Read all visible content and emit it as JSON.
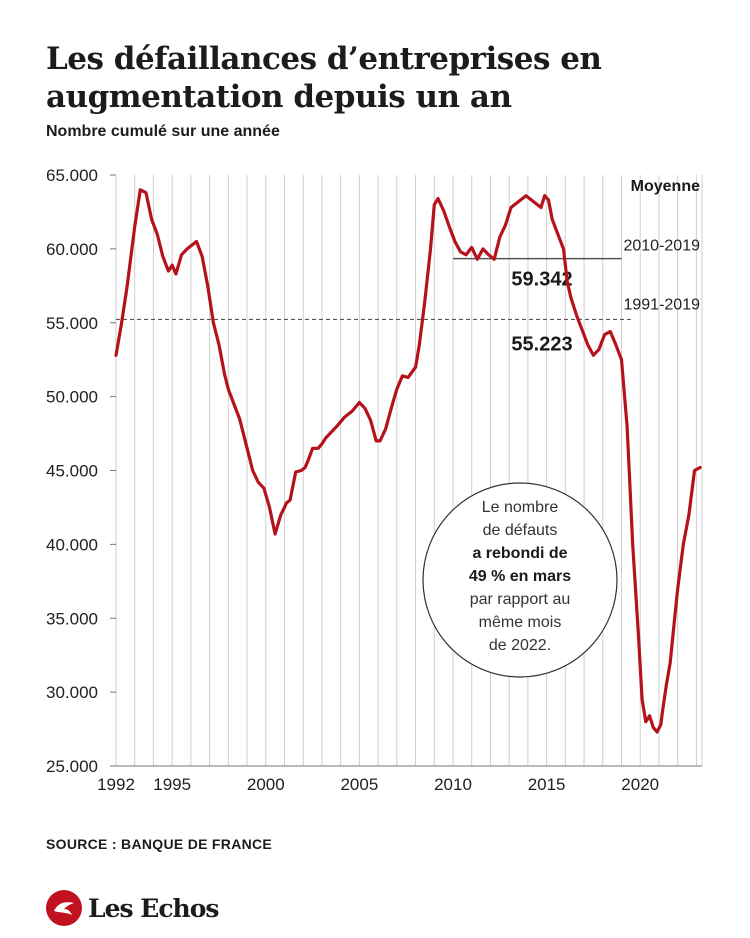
{
  "header": {
    "title": "Les défaillances d’entreprises en augmentation depuis un an",
    "subtitle": "Nombre cumulé sur une année"
  },
  "source": "SOURCE : BANQUE DE FRANCE",
  "brand": {
    "name": "Les Echos"
  },
  "colors": {
    "line": "#b5121b",
    "grid": "#cfcfcf",
    "reference": "#555555"
  },
  "chart_data": {
    "type": "line",
    "title": "Les défaillances d’entreprises en augmentation depuis un an",
    "subtitle": "Nombre cumulé sur une année",
    "xlabel": "",
    "ylabel": "",
    "xlim": [
      1992,
      2023.3
    ],
    "ylim": [
      25000,
      65000
    ],
    "x_ticks": [
      1992,
      1995,
      2000,
      2005,
      2010,
      2015,
      2020
    ],
    "x_tick_labels": [
      "1992",
      "1995",
      "2000",
      "2005",
      "2010",
      "2015",
      "2020"
    ],
    "y_ticks": [
      25000,
      30000,
      35000,
      40000,
      45000,
      50000,
      55000,
      60000,
      65000
    ],
    "y_tick_labels": [
      "25.000",
      "30.000",
      "35.000",
      "40.000",
      "45.000",
      "50.000",
      "55.000",
      "60.000",
      "65.000"
    ],
    "grid": {
      "vertical": true,
      "horizontal": false
    },
    "legend": "none",
    "series": [
      {
        "x": [
          1992.0,
          1992.3,
          1992.6,
          1993.0,
          1993.3,
          1993.6,
          1993.9,
          1994.2,
          1994.5,
          1994.8,
          1995.0,
          1995.2,
          1995.5,
          1995.8,
          1996.0,
          1996.3,
          1996.6,
          1996.9,
          1997.2,
          1997.5,
          1997.8,
          1998.0,
          1998.3,
          1998.6,
          1999.0,
          1999.3,
          1999.6,
          1999.9,
          2000.2,
          2000.5,
          2000.8,
          2001.0,
          2001.1,
          2001.3,
          2001.6,
          2001.9,
          2002.1,
          2002.3,
          2002.5,
          2002.8,
          2003.0,
          2003.2,
          2003.5,
          2003.8,
          2004.2,
          2004.6,
          2005.0,
          2005.3,
          2005.6,
          2005.9,
          2006.1,
          2006.4,
          2006.7,
          2007.0,
          2007.3,
          2007.6,
          2008.0,
          2008.2,
          2008.5,
          2008.8,
          2009.0,
          2009.2,
          2009.5,
          2009.8,
          2010.1,
          2010.4,
          2010.7,
          2011.0,
          2011.3,
          2011.6,
          2011.9,
          2012.2,
          2012.5,
          2012.8,
          2013.1,
          2013.5,
          2013.9,
          2014.3,
          2014.7,
          2014.9,
          2015.1,
          2015.3,
          2015.6,
          2015.9,
          2016.1,
          2016.3,
          2016.6,
          2016.9,
          2017.2,
          2017.5,
          2017.8,
          2018.1,
          2018.4,
          2018.7,
          2019.0,
          2019.3,
          2019.6,
          2019.9,
          2020.1,
          2020.3,
          2020.5,
          2020.7,
          2020.9,
          2021.1,
          2021.2,
          2021.4,
          2021.6,
          2021.8,
          2022.0,
          2022.3,
          2022.6,
          2022.9,
          2023.2
        ],
        "y": [
          52800,
          55000,
          57500,
          61500,
          64000,
          63800,
          62000,
          61000,
          59500,
          58500,
          58900,
          58300,
          59600,
          60000,
          60200,
          60500,
          59500,
          57500,
          55000,
          53500,
          51500,
          50500,
          49500,
          48500,
          46500,
          45000,
          44200,
          43800,
          42500,
          40700,
          42000,
          42500,
          42800,
          43000,
          44900,
          45000,
          45200,
          45800,
          46500,
          46500,
          46800,
          47200,
          47600,
          48000,
          48600,
          49000,
          49600,
          49200,
          48400,
          47000,
          47000,
          47800,
          49200,
          50500,
          51400,
          51300,
          52000,
          53500,
          56500,
          60000,
          63000,
          63400,
          62600,
          61500,
          60500,
          59800,
          59600,
          60100,
          59300,
          60000,
          59600,
          59300,
          60800,
          61600,
          62800,
          63200,
          63600,
          63200,
          62800,
          63600,
          63300,
          62000,
          61000,
          60000,
          57800,
          56700,
          55500,
          54500,
          53500,
          52800,
          53200,
          54200,
          54400,
          53500,
          52500,
          48000,
          40000,
          34000,
          29500,
          28000,
          28400,
          27600,
          27300,
          27800,
          28800,
          30500,
          32000,
          34500,
          37000,
          40000,
          42000,
          45000,
          45200
        ]
      }
    ],
    "reference_lines": [
      {
        "label": "2010-2019",
        "value": 59342,
        "value_label": "59.342",
        "x_start": 2010,
        "x_end": 2019
      },
      {
        "label": "1991-2019",
        "value": 55223,
        "value_label": "55.223",
        "x_start": 1992,
        "x_end": 2019.5
      }
    ],
    "reference_header": "Moyenne",
    "annotation": {
      "lines": [
        {
          "text": "Le nombre",
          "bold": false
        },
        {
          "text": "de défauts",
          "bold": false
        },
        {
          "text": "a rebondi de",
          "bold": true
        },
        {
          "text": "49 % en mars",
          "bold": true
        },
        {
          "text": "par rapport au",
          "bold": false
        },
        {
          "text": "même mois",
          "bold": false
        },
        {
          "text": "de 2022.",
          "bold": false
        }
      ]
    }
  }
}
